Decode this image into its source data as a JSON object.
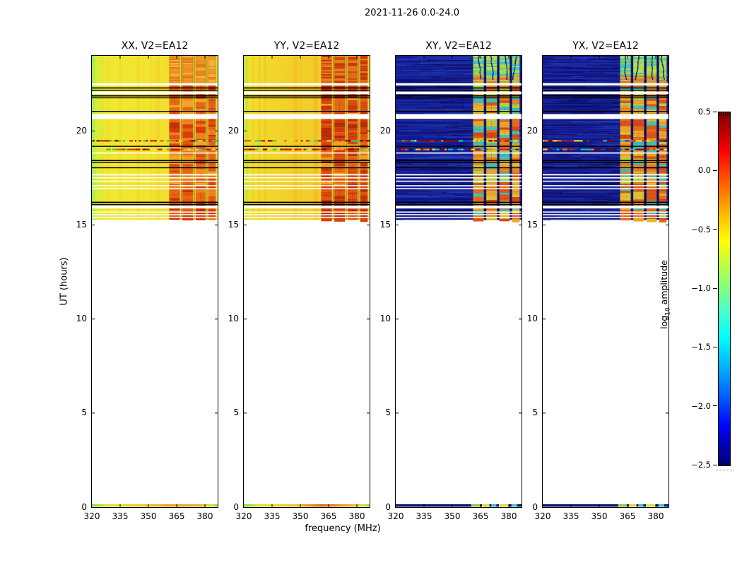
{
  "figure": {
    "title": "2021-11-26 0.0-24.0",
    "xlabel": "frequency (MHz)",
    "ylabel": "UT (hours)",
    "colorbar_label": {
      "prefix": "log",
      "sub": "10",
      "suffix": " amplitude"
    }
  },
  "chart_data": {
    "type": "heatmap",
    "title": "2021-11-26 0.0-24.0",
    "xlabel": "frequency (MHz)",
    "ylabel": "UT (hours)",
    "panels": [
      {
        "title": "XX, V2=EA12",
        "style": "warm",
        "background_log10_amplitude": -0.55,
        "active_log10_amplitude": 0.2
      },
      {
        "title": "YY, V2=EA12",
        "style": "warm_strong",
        "background_log10_amplitude": -0.45,
        "active_log10_amplitude": 0.35
      },
      {
        "title": "XY, V2=EA12",
        "style": "cool",
        "background_log10_amplitude": -2.3,
        "active_log10_amplitude": -0.5
      },
      {
        "title": "YX, V2=EA12",
        "style": "cool",
        "background_log10_amplitude": -2.3,
        "active_log10_amplitude": -0.5
      }
    ],
    "x_axis": {
      "label": "frequency (MHz)",
      "range": [
        320,
        386.75
      ],
      "ticks": [
        320,
        335,
        350,
        365,
        380
      ],
      "tick_labels": [
        "320",
        "335",
        "350",
        "365",
        "380"
      ]
    },
    "y_axis": {
      "label": "UT (hours)",
      "range": [
        0,
        24
      ],
      "ticks": [
        0,
        5,
        10,
        15,
        20
      ],
      "tick_labels": [
        "0",
        "5",
        "10",
        "15",
        "20"
      ]
    },
    "colorbar": {
      "label": "log10 amplitude",
      "range": [
        -2.5,
        0.5
      ],
      "colormap": "jet",
      "ticks": [
        0.5,
        0.0,
        -0.5,
        -1.0,
        -1.5,
        -2.0,
        -2.5
      ],
      "tick_labels": [
        "0.5",
        "0.0",
        "−0.5",
        "−1.0",
        "−1.5",
        "−2.0",
        "−2.5"
      ]
    },
    "data_coverage": {
      "observed_ut_range": [
        15.28,
        24.0
      ],
      "bottom_strip_ut": [
        0.0,
        0.15
      ],
      "empty_ut_range": [
        0.15,
        15.28
      ]
    },
    "rfi_active_band_mhz": [
      361,
      385
    ],
    "column_groups_frac": [
      [
        0.615,
        0.7
      ],
      [
        0.72,
        0.805
      ],
      [
        0.825,
        0.905
      ],
      [
        0.925,
        0.985
      ]
    ],
    "diffuse_top_band_ut": [
      22.55,
      24.0
    ],
    "row_events": [
      {
        "type": "white",
        "ut": [
          22.42,
          22.54
        ]
      },
      {
        "type": "black",
        "ut": [
          22.26,
          22.32
        ]
      },
      {
        "type": "black",
        "ut": [
          22.14,
          22.19
        ]
      },
      {
        "type": "white",
        "ut": [
          21.96,
          22.1
        ]
      },
      {
        "type": "black",
        "ut": [
          21.84,
          21.9
        ]
      },
      {
        "type": "black",
        "ut": [
          21.74,
          21.79
        ]
      },
      {
        "type": "black",
        "ut": [
          21.02,
          21.07
        ]
      },
      {
        "type": "white",
        "ut": [
          20.64,
          20.9
        ]
      },
      {
        "type": "speckle",
        "ut": [
          19.42,
          19.52
        ]
      },
      {
        "type": "black",
        "ut": [
          19.16,
          19.21
        ]
      },
      {
        "type": "speckle",
        "ut": [
          18.96,
          19.06
        ]
      },
      {
        "type": "white",
        "ut": [
          18.8,
          18.86
        ]
      },
      {
        "type": "black",
        "ut": [
          18.4,
          18.46
        ]
      },
      {
        "type": "black",
        "ut": [
          18.3,
          18.35
        ]
      },
      {
        "type": "black",
        "ut": [
          18.02,
          18.07
        ]
      },
      {
        "type": "white",
        "ut": [
          17.64,
          17.71
        ]
      },
      {
        "type": "white",
        "ut": [
          17.48,
          17.54
        ]
      },
      {
        "type": "white",
        "ut": [
          17.3,
          17.36
        ]
      },
      {
        "type": "white",
        "ut": [
          17.06,
          17.12
        ]
      },
      {
        "type": "white",
        "ut": [
          16.9,
          16.96
        ]
      },
      {
        "type": "black",
        "ut": [
          16.16,
          16.24
        ]
      },
      {
        "type": "black",
        "ut": [
          16.06,
          16.11
        ]
      },
      {
        "type": "white",
        "ut": [
          15.88,
          16.02
        ]
      },
      {
        "type": "white",
        "ut": [
          15.66,
          15.72
        ]
      },
      {
        "type": "white",
        "ut": [
          15.52,
          15.58
        ]
      },
      {
        "type": "white",
        "ut": [
          15.38,
          15.44
        ]
      }
    ]
  },
  "colors": {
    "warm_background": "#f2e42e",
    "warm_background_strong": "#f3d029",
    "warm_left_edge": "#9fe84f",
    "warm_active_red": "#d63c0e",
    "cool_background": "#141a8e",
    "cool_active_orange": "#ef8e20",
    "cool_active_green": "#a6d848",
    "speckle_cyan": "#2ec8c0",
    "speckle_dark_red": "#8b0000",
    "axis_color": "#000000",
    "colorbar_top": "#800000",
    "colorbar_bottom": "#000080"
  }
}
